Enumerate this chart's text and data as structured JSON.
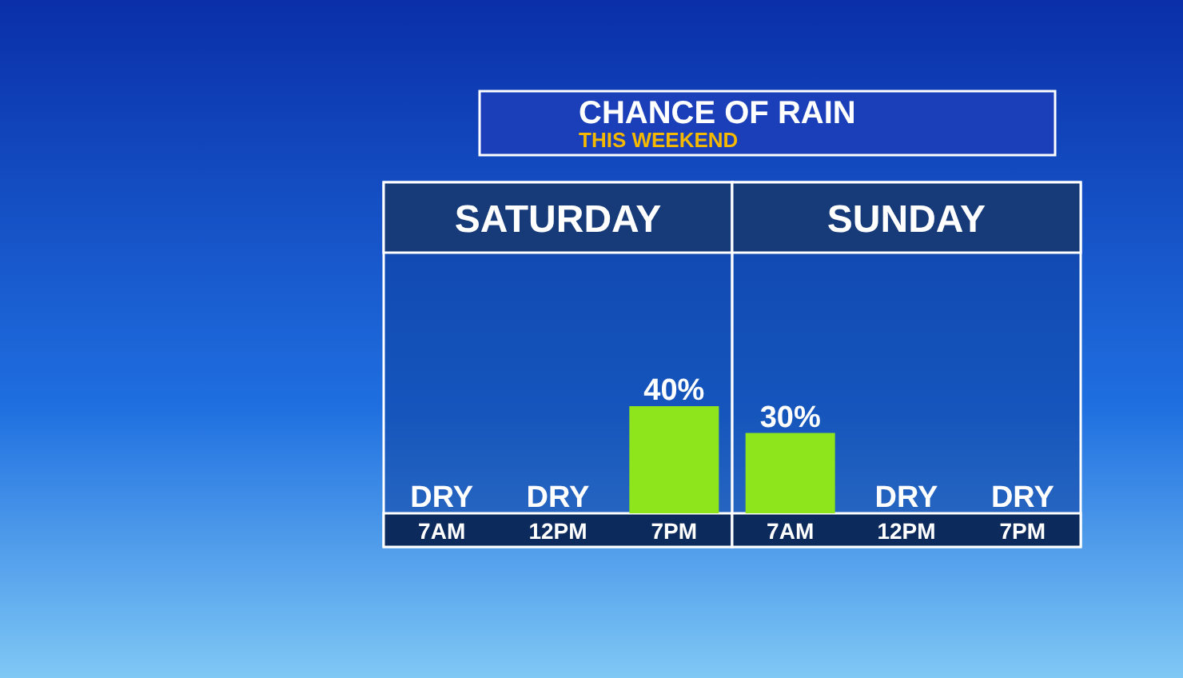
{
  "chart_data": [
    {
      "type": "other",
      "title": "CHANCE OF RAIN",
      "subtitle": "THIS WEEKEND"
    },
    {
      "type": "bar",
      "title": "SATURDAY",
      "categories": [
        "7AM",
        "12PM",
        "7PM"
      ],
      "values": [
        0,
        0,
        40
      ],
      "value_labels": [
        "DRY",
        "DRY",
        "40%"
      ],
      "color": "#8ee51b"
    },
    {
      "type": "bar",
      "title": "SUNDAY",
      "categories": [
        "7AM",
        "12PM",
        "7PM"
      ],
      "values": [
        30,
        0,
        0
      ],
      "value_labels": [
        "30%",
        "DRY",
        "DRY"
      ],
      "color": "#8ee51b"
    }
  ]
}
